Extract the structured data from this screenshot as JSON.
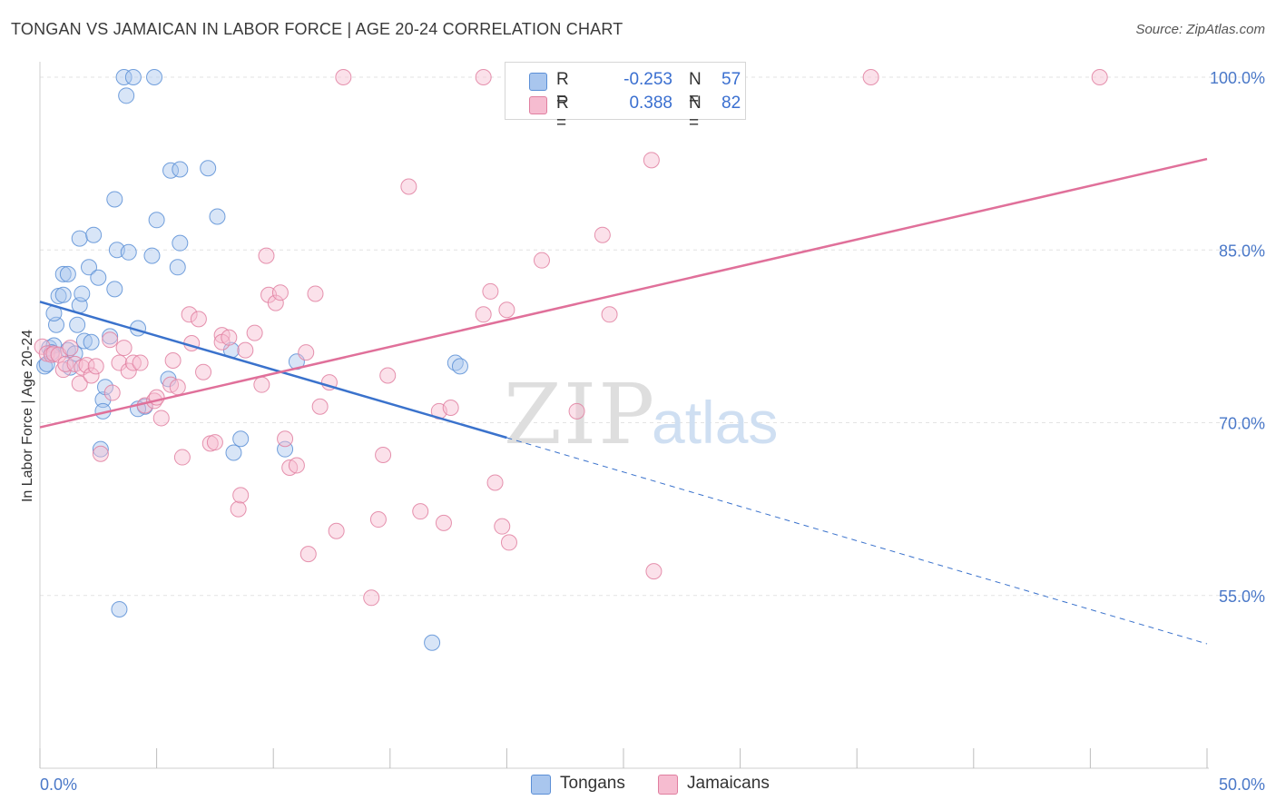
{
  "header": {
    "title": "TONGAN VS JAMAICAN IN LABOR FORCE | AGE 20-24 CORRELATION CHART",
    "source": "Source: ZipAtlas.com"
  },
  "watermark": {
    "zip": "ZIP",
    "atlas": "atlas"
  },
  "legend": {
    "rows": [
      {
        "r_label": "R =",
        "r_value": "-0.253",
        "n_label": "N =",
        "n_value": "57"
      },
      {
        "r_label": "R =",
        "r_value": "0.388",
        "n_label": "N =",
        "n_value": "82"
      }
    ]
  },
  "bottom_legend": {
    "tongans": "Tongans",
    "jamaicans": "Jamaicans"
  },
  "colors": {
    "tongan_fill": "#a9c6ee",
    "tongan_stroke": "#5b8fd6",
    "tongan_line": "#3a72cc",
    "jamaican_fill": "#f6bcd0",
    "jamaican_stroke": "#e07fa0",
    "jamaican_line": "#e0709a",
    "grid": "#e3e3e3",
    "axis_text": "#4a78c8"
  },
  "chart_data": {
    "type": "scatter",
    "title": "TONGAN VS JAMAICAN IN LABOR FORCE | AGE 20-24 CORRELATION CHART",
    "xlabel": "",
    "ylabel": "In Labor Force | Age 20-24",
    "xlim": [
      0,
      50
    ],
    "ylim": [
      40,
      101.5
    ],
    "x_tick_labels": [
      "0.0%",
      "50.0%"
    ],
    "y_ticks": [
      55,
      70,
      85,
      100
    ],
    "y_tick_labels": [
      "55.0%",
      "70.0%",
      "85.0%",
      "100.0%"
    ],
    "grid": true,
    "legend_position": "top-center",
    "series": [
      {
        "name": "Tongans",
        "r": -0.253,
        "n": 57,
        "trend": {
          "x": [
            0,
            20
          ],
          "y": [
            80.5,
            68.7
          ],
          "dashed_to": [
            50,
            50.8
          ]
        },
        "points": [
          [
            0.2,
            74.9
          ],
          [
            0.3,
            75.1
          ],
          [
            0.4,
            76.5
          ],
          [
            0.6,
            76.7
          ],
          [
            0.5,
            76.1
          ],
          [
            0.7,
            78.5
          ],
          [
            0.6,
            79.5
          ],
          [
            0.8,
            81.0
          ],
          [
            1.0,
            81.1
          ],
          [
            1.0,
            82.9
          ],
          [
            1.2,
            82.9
          ],
          [
            1.2,
            76.3
          ],
          [
            1.3,
            74.8
          ],
          [
            1.5,
            76.0
          ],
          [
            1.6,
            78.5
          ],
          [
            1.7,
            86.0
          ],
          [
            1.7,
            80.2
          ],
          [
            1.8,
            81.2
          ],
          [
            1.9,
            77.1
          ],
          [
            2.1,
            83.5
          ],
          [
            2.2,
            77.0
          ],
          [
            2.3,
            86.3
          ],
          [
            2.5,
            82.6
          ],
          [
            2.6,
            67.7
          ],
          [
            2.7,
            72.0
          ],
          [
            2.7,
            71.0
          ],
          [
            2.8,
            73.1
          ],
          [
            3.0,
            77.5
          ],
          [
            3.2,
            89.4
          ],
          [
            3.2,
            81.6
          ],
          [
            3.3,
            85.0
          ],
          [
            3.6,
            100.0
          ],
          [
            3.7,
            98.4
          ],
          [
            3.8,
            84.8
          ],
          [
            4.0,
            100.0
          ],
          [
            4.2,
            78.2
          ],
          [
            4.5,
            71.4
          ],
          [
            4.8,
            84.5
          ],
          [
            4.9,
            100.0
          ],
          [
            5.0,
            87.6
          ],
          [
            5.6,
            91.9
          ],
          [
            5.9,
            83.5
          ],
          [
            6.0,
            85.6
          ],
          [
            6.0,
            92.0
          ],
          [
            7.2,
            92.1
          ],
          [
            7.6,
            87.9
          ],
          [
            8.2,
            76.3
          ],
          [
            8.3,
            67.4
          ],
          [
            8.6,
            68.6
          ],
          [
            10.5,
            67.7
          ],
          [
            11.0,
            75.3
          ],
          [
            16.8,
            50.9
          ],
          [
            17.8,
            75.2
          ],
          [
            18.0,
            74.9
          ],
          [
            4.2,
            71.2
          ],
          [
            5.5,
            73.8
          ],
          [
            3.4,
            53.8
          ]
        ]
      },
      {
        "name": "Jamaicans",
        "r": 0.388,
        "n": 82,
        "trend": {
          "x": [
            0,
            50
          ],
          "y": [
            69.6,
            92.9
          ]
        },
        "points": [
          [
            0.1,
            76.6
          ],
          [
            0.3,
            76.0
          ],
          [
            0.5,
            75.9
          ],
          [
            0.6,
            76.0
          ],
          [
            0.8,
            75.9
          ],
          [
            1.0,
            74.6
          ],
          [
            1.1,
            75.1
          ],
          [
            1.3,
            76.5
          ],
          [
            1.5,
            75.1
          ],
          [
            1.7,
            73.4
          ],
          [
            1.8,
            74.8
          ],
          [
            2.0,
            75.0
          ],
          [
            2.2,
            74.1
          ],
          [
            2.4,
            74.9
          ],
          [
            2.6,
            67.3
          ],
          [
            3.0,
            77.2
          ],
          [
            3.1,
            72.6
          ],
          [
            3.4,
            75.2
          ],
          [
            3.6,
            76.5
          ],
          [
            3.8,
            74.5
          ],
          [
            4.0,
            75.2
          ],
          [
            4.3,
            75.2
          ],
          [
            4.5,
            71.5
          ],
          [
            4.9,
            71.9
          ],
          [
            5.0,
            72.2
          ],
          [
            5.2,
            70.4
          ],
          [
            5.6,
            73.3
          ],
          [
            5.7,
            75.4
          ],
          [
            5.9,
            73.1
          ],
          [
            6.1,
            67.0
          ],
          [
            6.4,
            79.4
          ],
          [
            6.5,
            76.9
          ],
          [
            6.8,
            79.0
          ],
          [
            7.0,
            74.4
          ],
          [
            7.3,
            68.2
          ],
          [
            7.5,
            68.3
          ],
          [
            7.8,
            77.6
          ],
          [
            7.8,
            77.0
          ],
          [
            8.1,
            77.4
          ],
          [
            8.5,
            62.5
          ],
          [
            8.6,
            63.7
          ],
          [
            8.8,
            76.3
          ],
          [
            9.2,
            77.8
          ],
          [
            9.5,
            73.3
          ],
          [
            9.7,
            84.5
          ],
          [
            9.8,
            81.1
          ],
          [
            10.1,
            80.4
          ],
          [
            10.3,
            81.3
          ],
          [
            10.5,
            68.6
          ],
          [
            10.7,
            66.1
          ],
          [
            11.0,
            66.3
          ],
          [
            11.4,
            76.1
          ],
          [
            11.5,
            58.6
          ],
          [
            11.8,
            81.2
          ],
          [
            12.0,
            71.4
          ],
          [
            12.4,
            73.5
          ],
          [
            12.7,
            60.6
          ],
          [
            13.0,
            100.0
          ],
          [
            14.2,
            54.8
          ],
          [
            14.5,
            61.6
          ],
          [
            14.7,
            67.2
          ],
          [
            14.9,
            74.1
          ],
          [
            15.8,
            90.5
          ],
          [
            16.3,
            62.3
          ],
          [
            17.1,
            71.0
          ],
          [
            17.6,
            71.3
          ],
          [
            17.3,
            61.3
          ],
          [
            19.0,
            100.0
          ],
          [
            19.0,
            79.4
          ],
          [
            19.3,
            81.4
          ],
          [
            19.5,
            64.8
          ],
          [
            19.8,
            61.0
          ],
          [
            20.0,
            79.8
          ],
          [
            20.1,
            59.6
          ],
          [
            21.5,
            84.1
          ],
          [
            23.0,
            71.0
          ],
          [
            24.1,
            86.3
          ],
          [
            24.4,
            79.4
          ],
          [
            26.3,
            57.1
          ],
          [
            26.2,
            92.8
          ],
          [
            35.6,
            100.0
          ],
          [
            45.4,
            100.0
          ]
        ]
      }
    ]
  }
}
